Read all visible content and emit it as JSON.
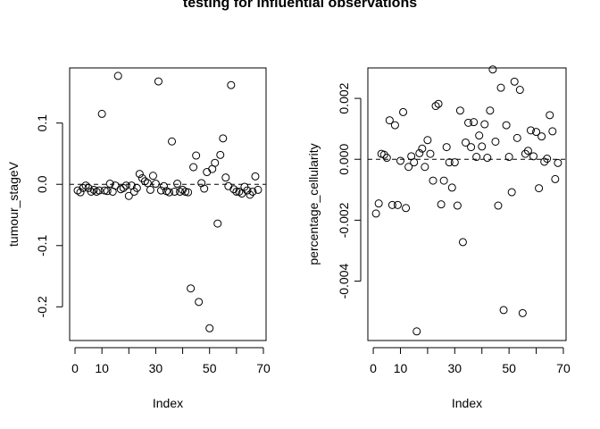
{
  "chart_data": {
    "title": "testing for influential observations",
    "panels": [
      {
        "type": "scatter",
        "xlabel": "Index",
        "ylabel": "tumour_stageV",
        "xlim": [
          -2,
          71
        ],
        "ylim": [
          -0.255,
          0.19
        ],
        "xticks": [
          0,
          10,
          30,
          50,
          70
        ],
        "xtick_labels": [
          "0",
          "10",
          "30",
          "50",
          "70"
        ],
        "xtick_marks": [
          0,
          10,
          20,
          30,
          40,
          50,
          60,
          70
        ],
        "yticks": [
          -0.2,
          -0.1,
          0.0,
          0.1
        ],
        "ytick_labels": [
          "-0.2",
          "-0.1",
          "0.0",
          "0.1"
        ],
        "reference_line": 0,
        "x": [
          1,
          2,
          3,
          4,
          5,
          6,
          7,
          8,
          9,
          10,
          11,
          12,
          13,
          14,
          15,
          16,
          17,
          18,
          19,
          20,
          21,
          22,
          23,
          24,
          25,
          26,
          27,
          28,
          29,
          30,
          31,
          32,
          33,
          34,
          35,
          36,
          37,
          38,
          39,
          40,
          41,
          42,
          43,
          44,
          45,
          46,
          47,
          48,
          49,
          50,
          51,
          52,
          53,
          54,
          55,
          56,
          57,
          58,
          59,
          60,
          61,
          62,
          63,
          64,
          65,
          66,
          67,
          68
        ],
        "y": [
          -0.01,
          -0.013,
          -0.006,
          -0.002,
          -0.006,
          -0.012,
          -0.009,
          -0.012,
          -0.01,
          0.115,
          -0.01,
          -0.011,
          0.001,
          -0.012,
          -0.002,
          0.177,
          -0.008,
          -0.006,
          -0.002,
          -0.019,
          -0.002,
          -0.012,
          -0.006,
          0.017,
          0.01,
          0.005,
          0.002,
          -0.009,
          0.014,
          0.001,
          0.168,
          -0.01,
          -0.003,
          -0.011,
          -0.013,
          0.07,
          -0.012,
          0.001,
          -0.012,
          -0.009,
          -0.012,
          -0.013,
          -0.17,
          0.028,
          0.047,
          -0.192,
          0.002,
          -0.007,
          0.02,
          -0.235,
          0.025,
          0.035,
          -0.064,
          0.048,
          0.075,
          0.011,
          -0.003,
          0.162,
          -0.008,
          -0.012,
          -0.012,
          -0.015,
          -0.004,
          -0.01,
          -0.017,
          -0.012,
          0.013,
          -0.009
        ]
      },
      {
        "type": "scatter",
        "xlabel": "Index",
        "ylabel": "percentage_cellularity",
        "xlim": [
          -2,
          71
        ],
        "ylim": [
          -0.00595,
          0.003
        ],
        "xticks": [
          0,
          10,
          30,
          50,
          70
        ],
        "xtick_labels": [
          "0",
          "10",
          "30",
          "50",
          "70"
        ],
        "xtick_marks": [
          0,
          10,
          20,
          30,
          40,
          50,
          60,
          70
        ],
        "yticks": [
          -0.004,
          -0.002,
          0.0,
          0.002
        ],
        "ytick_labels": [
          "-0.004",
          "-0.002",
          "0.000",
          "0.002"
        ],
        "reference_line": 0,
        "x": [
          1,
          2,
          3,
          4,
          5,
          6,
          7,
          8,
          9,
          10,
          11,
          12,
          13,
          14,
          15,
          16,
          17,
          18,
          19,
          20,
          21,
          22,
          23,
          24,
          25,
          26,
          27,
          28,
          29,
          30,
          31,
          32,
          33,
          34,
          35,
          36,
          37,
          38,
          39,
          40,
          41,
          42,
          43,
          44,
          45,
          46,
          47,
          48,
          49,
          50,
          51,
          52,
          53,
          54,
          55,
          56,
          57,
          58,
          59,
          60,
          61,
          62,
          63,
          64,
          65,
          66,
          67,
          68
        ],
        "y": [
          -0.00178,
          -0.00145,
          0.00018,
          0.00015,
          5e-05,
          0.00128,
          -0.0015,
          0.00112,
          -0.0015,
          -5e-05,
          0.00155,
          -0.0016,
          -0.00025,
          0.0001,
          -0.0001,
          -0.00565,
          0.0002,
          0.00035,
          -0.00025,
          0.00063,
          0.00018,
          -0.0007,
          0.00175,
          0.00182,
          -0.00148,
          -0.0007,
          0.0004,
          -0.0001,
          -0.00093,
          -0.0001,
          -0.00152,
          0.0016,
          -0.00272,
          0.00055,
          0.0012,
          0.0004,
          0.00122,
          8e-05,
          0.00078,
          0.00042,
          0.00115,
          5e-05,
          0.0016,
          0.00295,
          0.00058,
          -0.00152,
          0.00235,
          -0.00495,
          0.00112,
          8e-05,
          -0.00108,
          0.00255,
          0.0007,
          0.00228,
          -0.00505,
          0.00018,
          0.00028,
          0.00095,
          0.0001,
          0.0009,
          -0.00095,
          0.00075,
          -8e-05,
          2e-05,
          0.00145,
          0.00092,
          -0.00065,
          -0.00012
        ]
      }
    ]
  }
}
